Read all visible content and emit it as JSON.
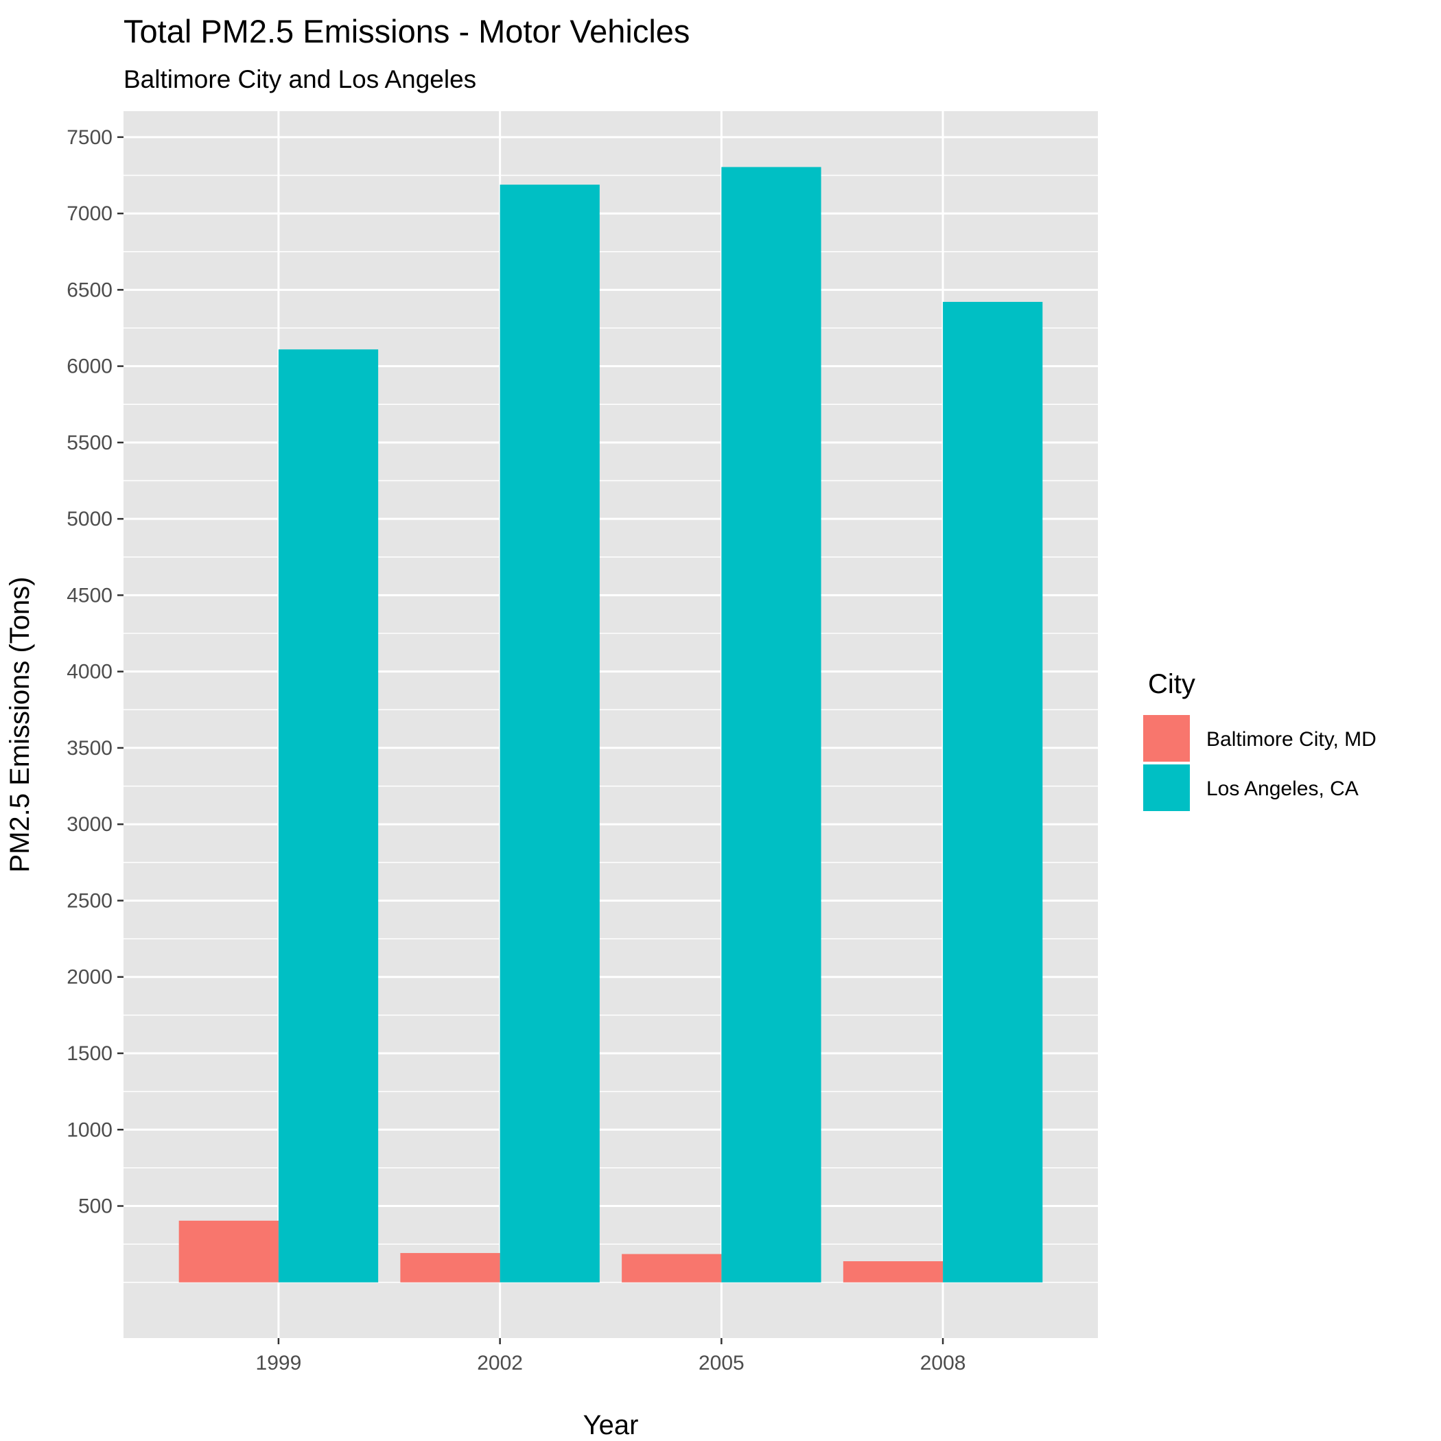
{
  "chart_data": {
    "type": "bar",
    "title": "Total PM2.5 Emissions - Motor Vehicles",
    "subtitle": "Baltimore City and Los Angeles",
    "xlabel": "Year",
    "ylabel": "PM2.5 Emissions (Tons)",
    "categories": [
      "1999",
      "2002",
      "2005",
      "2008"
    ],
    "series": [
      {
        "name": "Baltimore City, MD",
        "color": "#F8766D",
        "values": [
          403.8,
          192.0,
          185.4,
          138.2
        ]
      },
      {
        "name": "Los Angeles, CA",
        "color": "#00BFC4",
        "values": [
          6109.7,
          7188.7,
          7304.1,
          6421.0
        ]
      }
    ],
    "yticks": [
      500,
      1000,
      1500,
      2000,
      2500,
      3000,
      3500,
      4000,
      4500,
      5000,
      5500,
      6000,
      6500,
      7000,
      7500
    ],
    "ylim": [
      -365,
      7670
    ],
    "grid": true,
    "legend": {
      "title": "City",
      "placement": "right"
    },
    "colors": {
      "panel": "#E5E5E5",
      "grid": "#FFFFFF",
      "tick_text": "#4D4D4D"
    }
  }
}
